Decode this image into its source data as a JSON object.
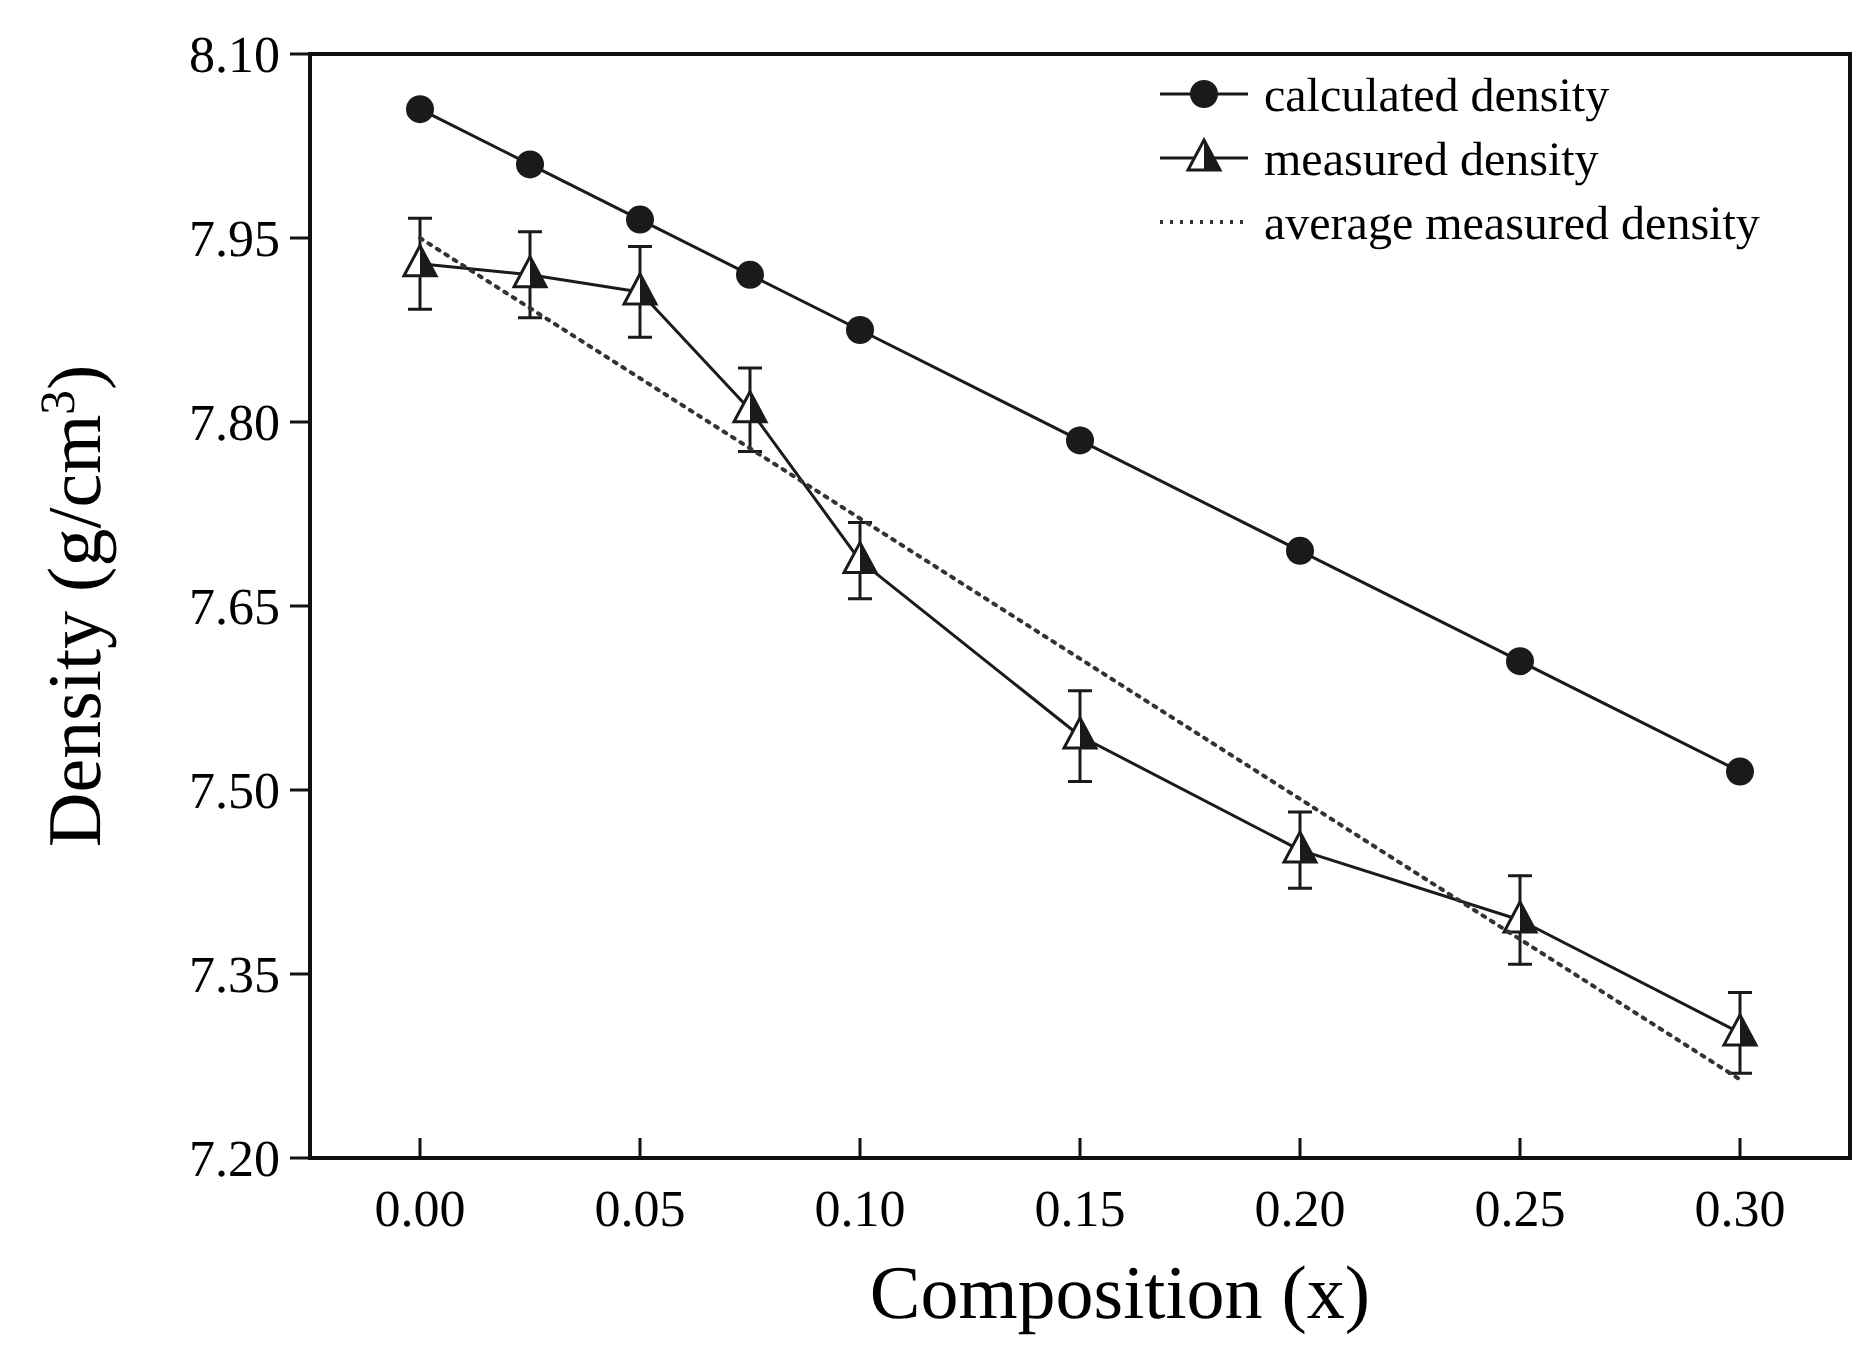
{
  "chart_data": {
    "type": "line",
    "xlabel": "Composition (x)",
    "ylabel": "Density (g/cm$^{3}$)",
    "x": [
      0,
      0.025,
      0.05,
      0.075,
      0.1,
      0.15,
      0.2,
      0.25,
      0.3
    ],
    "xlim": [
      -0.025,
      0.325
    ],
    "xticks": [
      {
        "value": 0,
        "label": "0.00"
      },
      0.05,
      {
        "value": 0.1,
        "label": "0.10"
      },
      0.15,
      {
        "value": 0.2,
        "label": "0.20"
      },
      0.25,
      {
        "value": 0.3,
        "label": "0.30"
      }
    ],
    "ylim": [
      7.2,
      8.1
    ],
    "yticks": [
      {
        "value": 7.2,
        "label": "7.20"
      },
      7.35,
      {
        "value": 7.5,
        "label": "7.50"
      },
      7.65,
      {
        "value": 7.8,
        "label": "7.80"
      },
      7.95,
      {
        "value": 8.1,
        "label": "8.10"
      }
    ],
    "series": [
      {
        "name": "calculated density",
        "color": "#1a1a1a",
        "marker": "circle",
        "line_style": "solid",
        "values": [
          8.055,
          8.01,
          7.965,
          7.92,
          7.875,
          7.785,
          7.695,
          7.605,
          7.515
        ]
      },
      {
        "name": "measured density",
        "color": "#1a1a1a",
        "marker": "triangle",
        "line_style": "solid",
        "values": [
          7.929,
          7.92,
          7.906,
          7.81,
          7.687,
          7.544,
          7.451,
          7.394,
          7.302
        ],
        "errors": [
          0.037,
          0.035,
          0.037,
          0.034,
          0.031,
          0.037,
          0.031,
          0.036,
          0.033
        ]
      },
      {
        "name": "average measured density",
        "color": "#333333",
        "marker": "none",
        "line_style": "dotted",
        "x": [
          0,
          0.3
        ],
        "values": [
          7.95,
          7.264
        ]
      }
    ],
    "legend": "top right",
    "grid": false
  }
}
